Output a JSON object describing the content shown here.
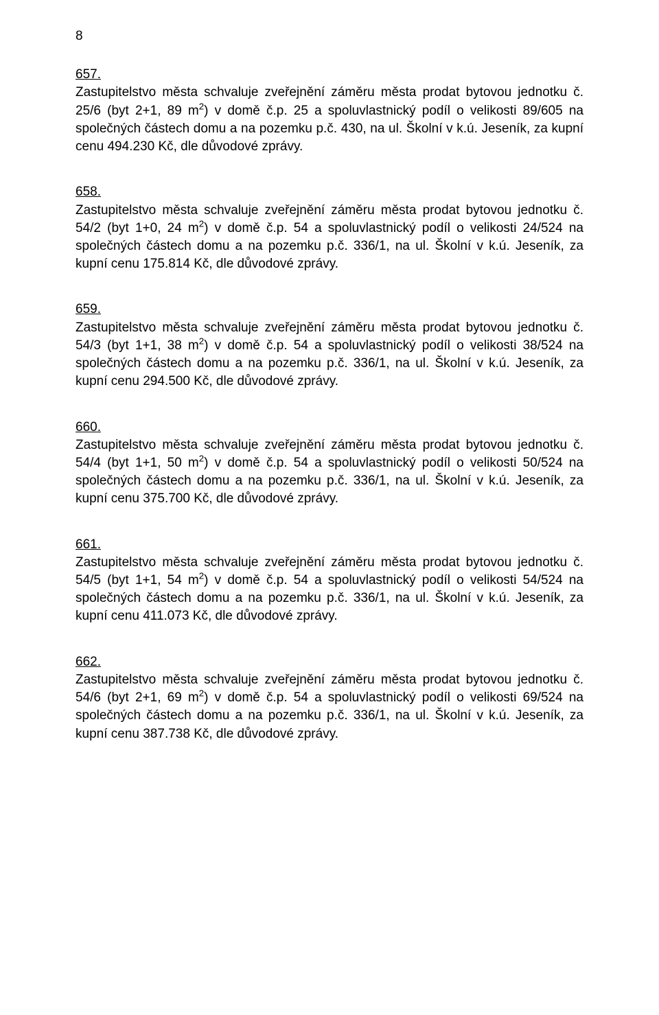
{
  "page_number": "8",
  "resolutions": [
    {
      "number": "657.",
      "text_parts": [
        "jednotku č. 25/6 (byt 2+1, 89 m",
        ") v domě č.p. 25 a spoluvlastnický podíl o velikosti 89/605 na společných částech domu a na pozemku p.č. 430, na ul. Školní v k.ú. Jeseník, za kupní cenu 494.230 Kč, dle důvodové zprávy."
      ]
    },
    {
      "number": "658.",
      "text_parts": [
        "jednotku č. 54/2 (byt 1+0, 24 m",
        ") v domě č.p. 54 a spoluvlastnický podíl o velikosti 24/524 na společných částech domu a na pozemku p.č. 336/1, na ul. Školní v k.ú. Jeseník, za kupní cenu 175.814 Kč, dle důvodové zprávy."
      ]
    },
    {
      "number": "659.",
      "text_parts": [
        "jednotku č. 54/3 (byt 1+1, 38 m",
        ") v domě č.p. 54 a spoluvlastnický podíl o velikosti 38/524 na společných částech domu a na pozemku p.č. 336/1, na ul. Školní v k.ú. Jeseník, za kupní cenu 294.500 Kč, dle důvodové zprávy."
      ]
    },
    {
      "number": "660.",
      "text_parts": [
        "jednotku č. 54/4 (byt 1+1, 50 m",
        ") v domě č.p. 54 a spoluvlastnický podíl o velikosti 50/524 na společných částech domu a na pozemku p.č. 336/1, na ul. Školní v k.ú. Jeseník, za kupní cenu 375.700 Kč, dle důvodové zprávy."
      ]
    },
    {
      "number": "661.",
      "text_parts": [
        "jednotku č. 54/5 (byt 1+1, 54 m",
        ") v domě č.p. 54 a spoluvlastnický podíl o velikosti 54/524 na společných částech domu a na pozemku p.č. 336/1, na ul. Školní v k.ú. Jeseník, za kupní cenu 411.073 Kč, dle důvodové zprávy."
      ]
    },
    {
      "number": "662.",
      "text_parts": [
        "jednotku č. 54/6 (byt 2+1, 69 m",
        ") v domě č.p. 54 a spoluvlastnický podíl o velikosti 69/524 na společných částech domu a na pozemku p.č. 336/1, na ul. Školní v k.ú. Jeseník, za kupní cenu 387.738 Kč, dle důvodové zprávy."
      ]
    }
  ],
  "lead_text": "Zastupitelstvo města schvaluje zveřejnění záměru města prodat bytovou ",
  "sup": "2"
}
